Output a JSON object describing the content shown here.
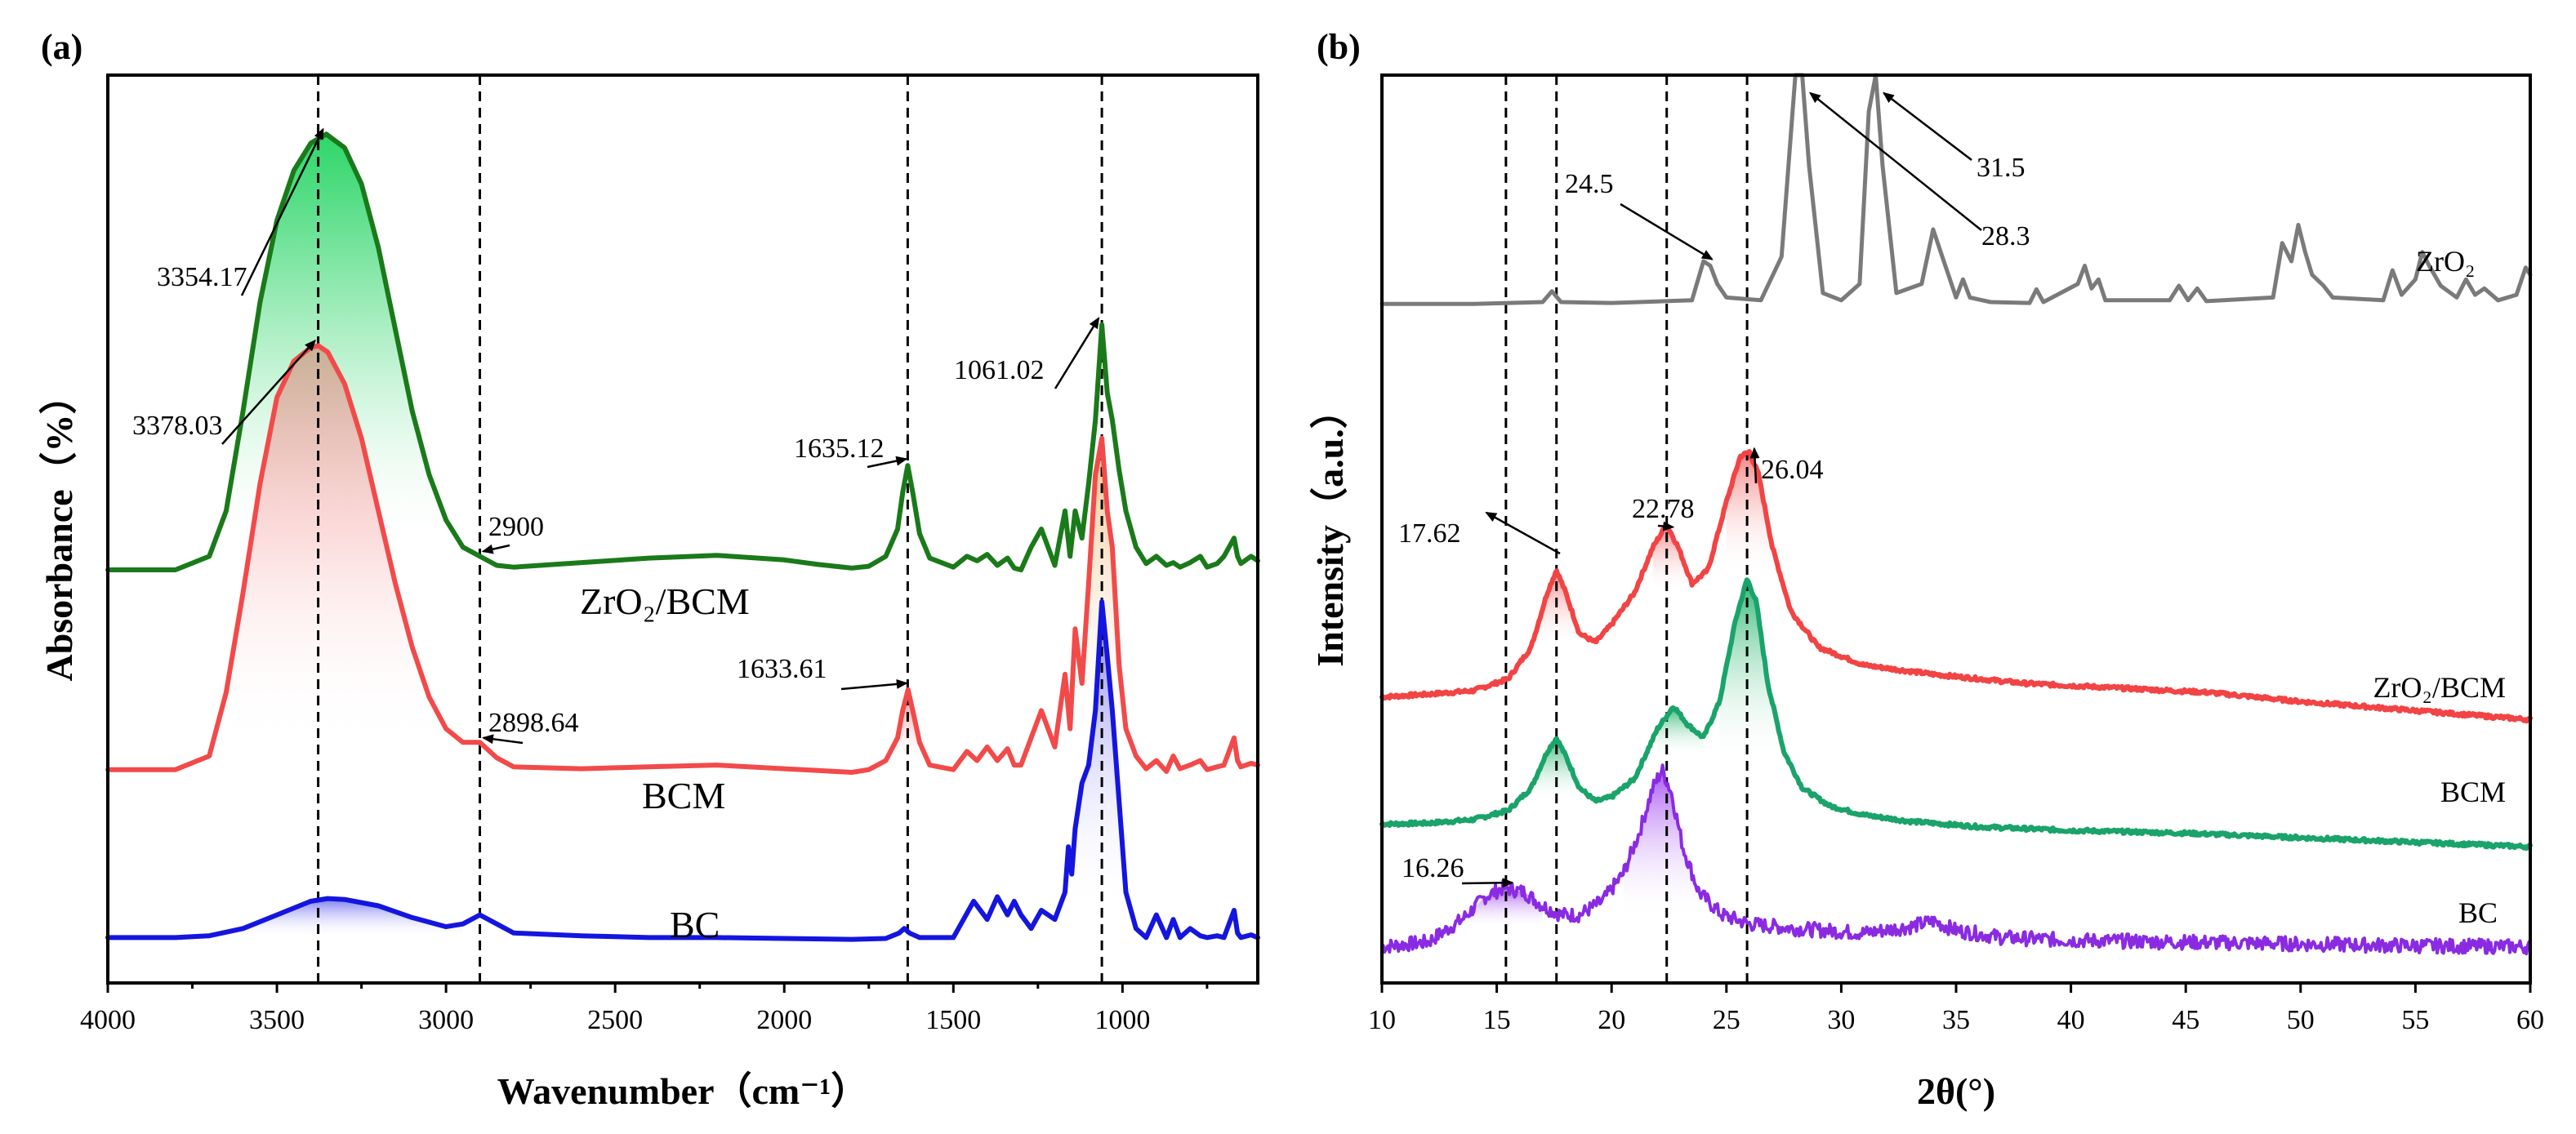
{
  "chart_data": [
    {
      "type": "line",
      "panel_label": "(a)",
      "title": "",
      "xlabel": "Wavenumber（cm⁻¹）",
      "ylabel": "Absorbance（%）",
      "xlim": [
        4000,
        600
      ],
      "x_reversed": true,
      "xticks": [
        "4000",
        "3500",
        "3000",
        "2500",
        "2000",
        "1500",
        "1000"
      ],
      "xtick_values": [
        4000,
        3500,
        3000,
        2500,
        2000,
        1500,
        1000
      ],
      "ylim": [
        0,
        1
      ],
      "y_ticks_shown": false,
      "grid": false,
      "reference_lines_x": [
        3378,
        2900,
        1635,
        1061
      ],
      "series": [
        {
          "name": "ZrO2/BCM",
          "label_text": "ZrO₂/BCM",
          "color": "#1a7a1a",
          "x": [
            4000,
            3800,
            3700,
            3650,
            3600,
            3550,
            3500,
            3450,
            3400,
            3354,
            3300,
            3250,
            3200,
            3150,
            3100,
            3050,
            3000,
            2950,
            2900,
            2850,
            2800,
            2600,
            2400,
            2200,
            2000,
            1900,
            1800,
            1750,
            1700,
            1665,
            1650,
            1635,
            1620,
            1600,
            1570,
            1500,
            1460,
            1430,
            1400,
            1370,
            1340,
            1320,
            1300,
            1270,
            1240,
            1200,
            1170,
            1155,
            1140,
            1120,
            1100,
            1080,
            1061,
            1045,
            1030,
            1010,
            990,
            960,
            930,
            900,
            870,
            850,
            830,
            800,
            770,
            750,
            720,
            700,
            670,
            660,
            650,
            620,
            600
          ],
          "y": [
            0.455,
            0.455,
            0.47,
            0.52,
            0.63,
            0.75,
            0.84,
            0.895,
            0.925,
            0.935,
            0.92,
            0.88,
            0.81,
            0.72,
            0.63,
            0.56,
            0.51,
            0.48,
            0.47,
            0.46,
            0.458,
            0.463,
            0.468,
            0.471,
            0.466,
            0.461,
            0.457,
            0.459,
            0.47,
            0.5,
            0.54,
            0.57,
            0.54,
            0.495,
            0.468,
            0.458,
            0.47,
            0.465,
            0.472,
            0.46,
            0.468,
            0.457,
            0.455,
            0.48,
            0.5,
            0.46,
            0.52,
            0.47,
            0.52,
            0.49,
            0.55,
            0.62,
            0.725,
            0.65,
            0.62,
            0.565,
            0.52,
            0.48,
            0.462,
            0.47,
            0.46,
            0.463,
            0.458,
            0.463,
            0.47,
            0.458,
            0.462,
            0.47,
            0.49,
            0.47,
            0.462,
            0.47,
            0.465
          ]
        },
        {
          "name": "BCM",
          "label_text": "BCM",
          "color": "#f24a4a",
          "x": [
            4000,
            3800,
            3700,
            3650,
            3600,
            3550,
            3500,
            3450,
            3400,
            3378,
            3350,
            3300,
            3250,
            3200,
            3150,
            3100,
            3050,
            3000,
            2950,
            2900,
            2850,
            2800,
            2600,
            2400,
            2200,
            2000,
            1900,
            1800,
            1750,
            1700,
            1665,
            1650,
            1634,
            1620,
            1600,
            1570,
            1500,
            1460,
            1430,
            1400,
            1370,
            1340,
            1320,
            1300,
            1270,
            1240,
            1200,
            1170,
            1155,
            1140,
            1120,
            1100,
            1080,
            1061,
            1045,
            1030,
            1010,
            990,
            960,
            930,
            900,
            870,
            850,
            830,
            800,
            770,
            750,
            720,
            700,
            670,
            660,
            650,
            620,
            600
          ],
          "y": [
            0.235,
            0.235,
            0.25,
            0.32,
            0.43,
            0.55,
            0.645,
            0.685,
            0.7,
            0.702,
            0.695,
            0.66,
            0.6,
            0.52,
            0.44,
            0.37,
            0.315,
            0.28,
            0.265,
            0.265,
            0.248,
            0.238,
            0.236,
            0.238,
            0.24,
            0.236,
            0.234,
            0.232,
            0.235,
            0.245,
            0.27,
            0.3,
            0.323,
            0.3,
            0.265,
            0.24,
            0.235,
            0.255,
            0.245,
            0.26,
            0.245,
            0.258,
            0.24,
            0.24,
            0.27,
            0.3,
            0.26,
            0.34,
            0.28,
            0.39,
            0.33,
            0.44,
            0.56,
            0.6,
            0.52,
            0.48,
            0.35,
            0.28,
            0.25,
            0.236,
            0.245,
            0.233,
            0.25,
            0.236,
            0.24,
            0.245,
            0.235,
            0.238,
            0.24,
            0.27,
            0.245,
            0.238,
            0.242,
            0.24
          ]
        },
        {
          "name": "BC",
          "label_text": "BC",
          "color": "#1515e0",
          "x": [
            4000,
            3800,
            3700,
            3600,
            3500,
            3400,
            3350,
            3300,
            3200,
            3100,
            3000,
            2950,
            2900,
            2850,
            2800,
            2600,
            2400,
            2200,
            2000,
            1800,
            1700,
            1660,
            1645,
            1630,
            1600,
            1500,
            1470,
            1440,
            1400,
            1370,
            1340,
            1320,
            1300,
            1270,
            1240,
            1200,
            1170,
            1160,
            1150,
            1140,
            1120,
            1100,
            1080,
            1061,
            1045,
            1030,
            1010,
            990,
            960,
            930,
            900,
            870,
            850,
            830,
            800,
            770,
            750,
            720,
            700,
            670,
            660,
            650,
            620,
            600
          ],
          "y": [
            0.05,
            0.05,
            0.052,
            0.06,
            0.075,
            0.09,
            0.093,
            0.092,
            0.085,
            0.072,
            0.062,
            0.065,
            0.075,
            0.065,
            0.055,
            0.052,
            0.05,
            0.05,
            0.049,
            0.048,
            0.049,
            0.055,
            0.06,
            0.055,
            0.05,
            0.05,
            0.07,
            0.09,
            0.07,
            0.095,
            0.075,
            0.09,
            0.075,
            0.06,
            0.08,
            0.07,
            0.1,
            0.15,
            0.12,
            0.17,
            0.22,
            0.24,
            0.3,
            0.42,
            0.36,
            0.3,
            0.2,
            0.1,
            0.06,
            0.05,
            0.075,
            0.05,
            0.07,
            0.05,
            0.06,
            0.052,
            0.05,
            0.052,
            0.05,
            0.08,
            0.055,
            0.05,
            0.053,
            0.05
          ]
        }
      ],
      "annotations": [
        {
          "text": "3354.17",
          "at_x": 3354,
          "series": "ZrO2/BCM"
        },
        {
          "text": "3378.03",
          "at_x": 3378,
          "series": "BCM"
        },
        {
          "text": "2900",
          "at_x": 2900,
          "series": "ZrO2/BCM"
        },
        {
          "text": "2898.64",
          "at_x": 2899,
          "series": "BCM"
        },
        {
          "text": "1635.12",
          "at_x": 1635,
          "series": "ZrO2/BCM"
        },
        {
          "text": "1633.61",
          "at_x": 1634,
          "series": "BCM"
        },
        {
          "text": "1061.02",
          "at_x": 1061,
          "series": "ZrO2/BCM"
        }
      ]
    },
    {
      "type": "line",
      "panel_label": "(b)",
      "title": "",
      "xlabel": "2θ(°)",
      "ylabel": "Intensity（a.u.）",
      "xlim": [
        10,
        60
      ],
      "xticks": [
        "10",
        "15",
        "20",
        "25",
        "30",
        "35",
        "40",
        "45",
        "50",
        "55",
        "60"
      ],
      "xtick_values": [
        10,
        15,
        20,
        25,
        30,
        35,
        40,
        45,
        50,
        55,
        60
      ],
      "ylim": [
        0,
        1
      ],
      "y_ticks_shown": false,
      "grid": false,
      "reference_lines_x": [
        15.4,
        17.6,
        22.4,
        25.9
      ],
      "series": [
        {
          "name": "ZrO2",
          "label_text": "ZrO₂",
          "color": "#7a7a7a",
          "x": [
            10,
            14,
            17.0,
            17.4,
            17.8,
            20,
            23.5,
            24.0,
            24.3,
            24.6,
            25.0,
            26.5,
            27.4,
            28.0,
            28.3,
            28.6,
            29.2,
            30.0,
            30.8,
            31.2,
            31.5,
            31.8,
            32.4,
            33.5,
            34.0,
            34.4,
            35.0,
            35.3,
            35.6,
            36.5,
            38.2,
            38.5,
            38.8,
            40.3,
            40.6,
            40.9,
            41.2,
            41.5,
            44.3,
            44.7,
            45.1,
            45.5,
            45.9,
            48.8,
            49.2,
            49.6,
            49.9,
            50.2,
            50.5,
            51.0,
            51.4,
            53.6,
            54.0,
            54.4,
            55.0,
            55.3,
            55.6,
            56.1,
            56.8,
            57.2,
            57.6,
            58.0,
            58.6,
            59.4,
            59.8,
            60
          ],
          "y": [
            0.748,
            0.748,
            0.75,
            0.762,
            0.75,
            0.749,
            0.752,
            0.795,
            0.79,
            0.77,
            0.755,
            0.752,
            0.8,
            1.0,
            1.0,
            0.9,
            0.76,
            0.752,
            0.77,
            0.96,
            1.0,
            0.9,
            0.76,
            0.77,
            0.83,
            0.8,
            0.755,
            0.775,
            0.755,
            0.75,
            0.749,
            0.764,
            0.75,
            0.77,
            0.79,
            0.765,
            0.775,
            0.752,
            0.752,
            0.768,
            0.752,
            0.765,
            0.751,
            0.755,
            0.815,
            0.795,
            0.835,
            0.805,
            0.78,
            0.768,
            0.755,
            0.752,
            0.785,
            0.758,
            0.775,
            0.805,
            0.79,
            0.768,
            0.755,
            0.775,
            0.758,
            0.765,
            0.752,
            0.758,
            0.788,
            0.78
          ]
        },
        {
          "name": "ZrO2/BCM",
          "label_text": "ZrO₂/BCM",
          "color": "#f24444",
          "x": [
            10,
            12,
            14,
            15.5,
            16.5,
            17.2,
            17.6,
            18.0,
            18.6,
            19.3,
            20.0,
            21.0,
            21.8,
            22.4,
            22.9,
            23.5,
            24.2,
            25.0,
            25.6,
            26.0,
            26.4,
            27.0,
            27.8,
            29.0,
            31.0,
            34.0,
            38.0,
            42.0,
            46.0,
            50.0,
            55.0,
            60
          ],
          "y": [
            0.315,
            0.318,
            0.322,
            0.335,
            0.37,
            0.43,
            0.455,
            0.43,
            0.385,
            0.375,
            0.395,
            0.43,
            0.48,
            0.505,
            0.48,
            0.44,
            0.455,
            0.53,
            0.58,
            0.585,
            0.56,
            0.48,
            0.41,
            0.37,
            0.35,
            0.34,
            0.33,
            0.325,
            0.32,
            0.31,
            0.3,
            0.29
          ]
        },
        {
          "name": "BCM",
          "label_text": "BCM",
          "color": "#1aa36a",
          "x": [
            10,
            12,
            14,
            15.5,
            16.5,
            17.2,
            17.6,
            18.0,
            18.6,
            19.3,
            20.0,
            21.0,
            22.0,
            22.7,
            23.3,
            24.0,
            24.7,
            25.4,
            25.9,
            26.3,
            26.8,
            27.5,
            28.3,
            29.5,
            31.0,
            33.0,
            36.0,
            40.0,
            45.0,
            50.0,
            55.0,
            60
          ],
          "y": [
            0.175,
            0.176,
            0.18,
            0.19,
            0.215,
            0.255,
            0.27,
            0.25,
            0.215,
            0.2,
            0.205,
            0.225,
            0.28,
            0.305,
            0.285,
            0.27,
            0.31,
            0.4,
            0.445,
            0.42,
            0.33,
            0.255,
            0.215,
            0.195,
            0.185,
            0.178,
            0.172,
            0.168,
            0.165,
            0.16,
            0.155,
            0.15
          ]
        },
        {
          "name": "BC",
          "label_text": "BC",
          "color": "#8a2be2",
          "x": [
            10,
            12,
            13.5,
            14.5,
            15.3,
            16.2,
            17.0,
            17.8,
            18.6,
            19.6,
            20.5,
            21.2,
            21.8,
            22.2,
            22.6,
            23.1,
            23.8,
            24.8,
            26.0,
            28.0,
            31.0,
            33.0,
            34.0,
            35.0,
            37.0,
            40.0,
            45.0,
            50.0,
            55.0,
            60
          ],
          "y": [
            0.04,
            0.045,
            0.07,
            0.095,
            0.105,
            0.1,
            0.085,
            0.075,
            0.075,
            0.09,
            0.12,
            0.165,
            0.215,
            0.235,
            0.21,
            0.15,
            0.1,
            0.075,
            0.065,
            0.06,
            0.055,
            0.062,
            0.068,
            0.058,
            0.05,
            0.047,
            0.045,
            0.043,
            0.041,
            0.04
          ]
        }
      ],
      "annotations": [
        {
          "text": "31.5",
          "at_x": 31.5
        },
        {
          "text": "28.3",
          "at_x": 28.3
        },
        {
          "text": "24.5",
          "at_x": 24.3
        },
        {
          "text": "26.04",
          "at_x": 26.0
        },
        {
          "text": "22.78",
          "at_x": 22.6
        },
        {
          "text": "17.62",
          "at_x": 17.6
        },
        {
          "text": "16.26",
          "at_x": 15.6
        }
      ]
    }
  ]
}
